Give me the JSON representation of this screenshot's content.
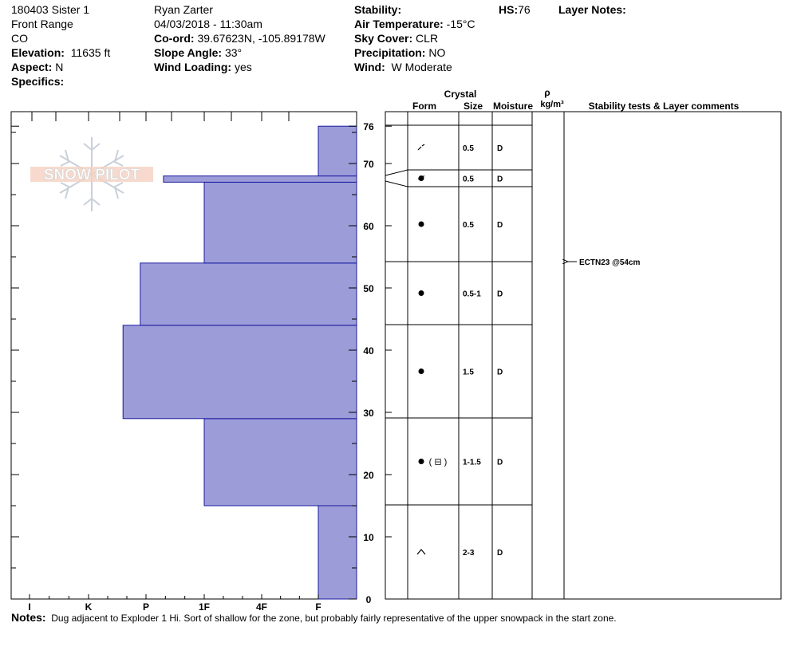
{
  "header": {
    "pit_name": "180403 Sister 1",
    "range": "Front Range",
    "state": "CO",
    "elevation_label": "Elevation:",
    "elevation": "11635 ft",
    "aspect_label": "Aspect:",
    "aspect": "N",
    "specifics_label": "Specifics:",
    "observer": "Ryan Zarter",
    "datetime": "04/03/2018 - 11:30am",
    "coord_label": "Co-ord:",
    "coord": "39.67623N, -105.89178W",
    "slope_label": "Slope Angle:",
    "slope": "33°",
    "wind_loading_label": "Wind Loading:",
    "wind_loading": "yes",
    "stability_label": "Stability:",
    "air_temp_label": "Air Temperature:",
    "air_temp": "-15°C",
    "sky_label": "Sky Cover:",
    "sky": "CLR",
    "precip_label": "Precipitation:",
    "precip": "NO",
    "wind_label": "Wind:",
    "wind": "W Moderate",
    "hs_label": "HS:",
    "hs": "76",
    "layer_notes_label": "Layer Notes:"
  },
  "logo_text": "SNOW PILOT",
  "columns": {
    "crystal": "Crystal",
    "form": "Form",
    "size": "Size",
    "moisture": "Moisture",
    "rho": "ρ",
    "density_unit": "kg/m³",
    "stability": "Stability tests & Layer comments"
  },
  "chart_data": {
    "type": "snow-profile",
    "hand_hardness_scale": [
      "I",
      "K",
      "P",
      "1F",
      "4F",
      "F"
    ],
    "height_axis": {
      "unit": "cm",
      "range": [
        0,
        76
      ],
      "ticks": [
        0,
        10,
        20,
        30,
        40,
        50,
        60,
        70,
        76
      ]
    },
    "hardness_profile": [
      {
        "bottom": 0,
        "top": 15,
        "hardness_index": 5
      },
      {
        "bottom": 15,
        "top": 29,
        "hardness_index": 3
      },
      {
        "bottom": 29,
        "top": 44,
        "hardness_index": 1.6
      },
      {
        "bottom": 44,
        "top": 54,
        "hardness_index": 1.9
      },
      {
        "bottom": 54,
        "top": 67,
        "hardness_index": 3
      },
      {
        "bottom": 67,
        "top": 68,
        "hardness_index": 2.3
      },
      {
        "bottom": 68,
        "top": 76,
        "hardness_index": 5
      }
    ],
    "layers": [
      {
        "top": 76,
        "bottom": 68,
        "form": "decomposing-fragments",
        "size": "0.5",
        "moisture": "D"
      },
      {
        "top": 68,
        "bottom": 66.5,
        "form": "rounded-partly-faceted",
        "size": "0.5",
        "moisture": "D"
      },
      {
        "top": 66.5,
        "bottom": 54,
        "form": "rounded-grains",
        "size": "0.5",
        "moisture": "D"
      },
      {
        "top": 54,
        "bottom": 44,
        "form": "rounded-grains",
        "size": "0.5-1",
        "moisture": "D"
      },
      {
        "top": 44,
        "bottom": 29,
        "form": "rounded-grains",
        "size": "1.5",
        "moisture": "D"
      },
      {
        "top": 29,
        "bottom": 15,
        "form": "rounded-grains-faceted-secondary",
        "size": "1-1.5",
        "moisture": "D"
      },
      {
        "top": 15,
        "bottom": 0,
        "form": "depth-hoar",
        "size": "2-3",
        "moisture": "D"
      }
    ],
    "tests": [
      {
        "height": 54,
        "label": "ECTN23 @54cm"
      }
    ]
  },
  "notes": {
    "label": "Notes:",
    "text": "Dug adjacent to Exploder 1 Hi.  Sort of shallow for the zone, but probably fairly representative of the upper snowpack in the start zone."
  }
}
